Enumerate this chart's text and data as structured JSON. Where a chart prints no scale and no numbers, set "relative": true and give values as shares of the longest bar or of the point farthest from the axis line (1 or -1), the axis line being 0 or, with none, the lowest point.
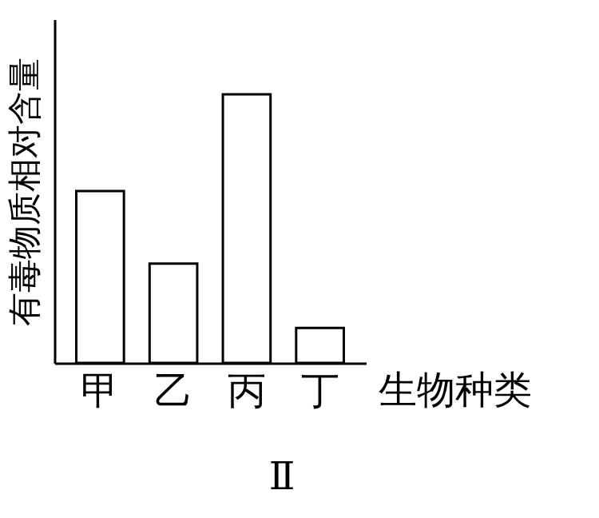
{
  "chart_data": {
    "type": "bar",
    "relative": true,
    "ylabel": "有毒物质相对含量",
    "xlabel": "生物种类",
    "categories": [
      "甲",
      "乙",
      "丙",
      "丁"
    ],
    "values": [
      0.64,
      0.37,
      1,
      0.13
    ],
    "color": "#ffffff",
    "annotations": [
      "Ⅱ"
    ],
    "grid": false
  }
}
